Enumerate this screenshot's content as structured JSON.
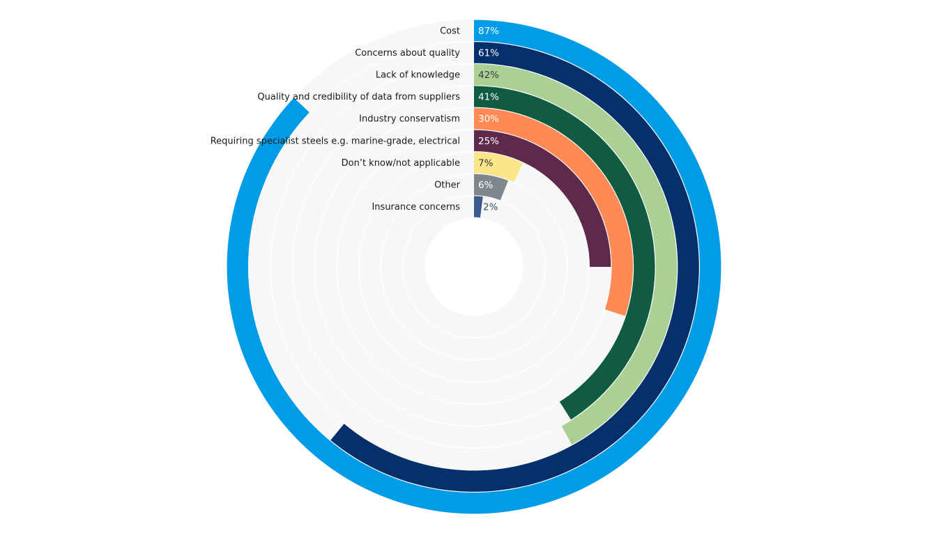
{
  "chart_data": {
    "type": "radial-bar",
    "value_max": 100,
    "unit": "%",
    "track_color": "#F7F7F5",
    "categories": [
      "Cost",
      "Concerns about quality",
      "Lack of knowledge",
      "Quality and credibility of data from suppliers",
      "Industry conservatism",
      "Requiring specialist steels e.g. marine-grade, electrical",
      "Don’t know/not applicable",
      "Other",
      "Insurance concerns"
    ],
    "values": [
      87,
      61,
      42,
      41,
      30,
      25,
      7,
      6,
      2
    ],
    "data_labels": [
      "87%",
      "61%",
      "42%",
      "41%",
      "30%",
      "25%",
      "7%",
      "6%",
      "2%"
    ],
    "colors": [
      "#009CE8",
      "#05306B",
      "#ABD096",
      "#115C41",
      "#FF8A55",
      "#5E2A4C",
      "#FDE68A",
      "#7F878D",
      "#3B5A8E"
    ],
    "label_colors": [
      "#ffffff",
      "#ffffff",
      "#3a3a3a",
      "#ffffff",
      "#ffffff",
      "#ffffff",
      "#3a3a3a",
      "#ffffff",
      "#3B4A6B"
    ]
  }
}
